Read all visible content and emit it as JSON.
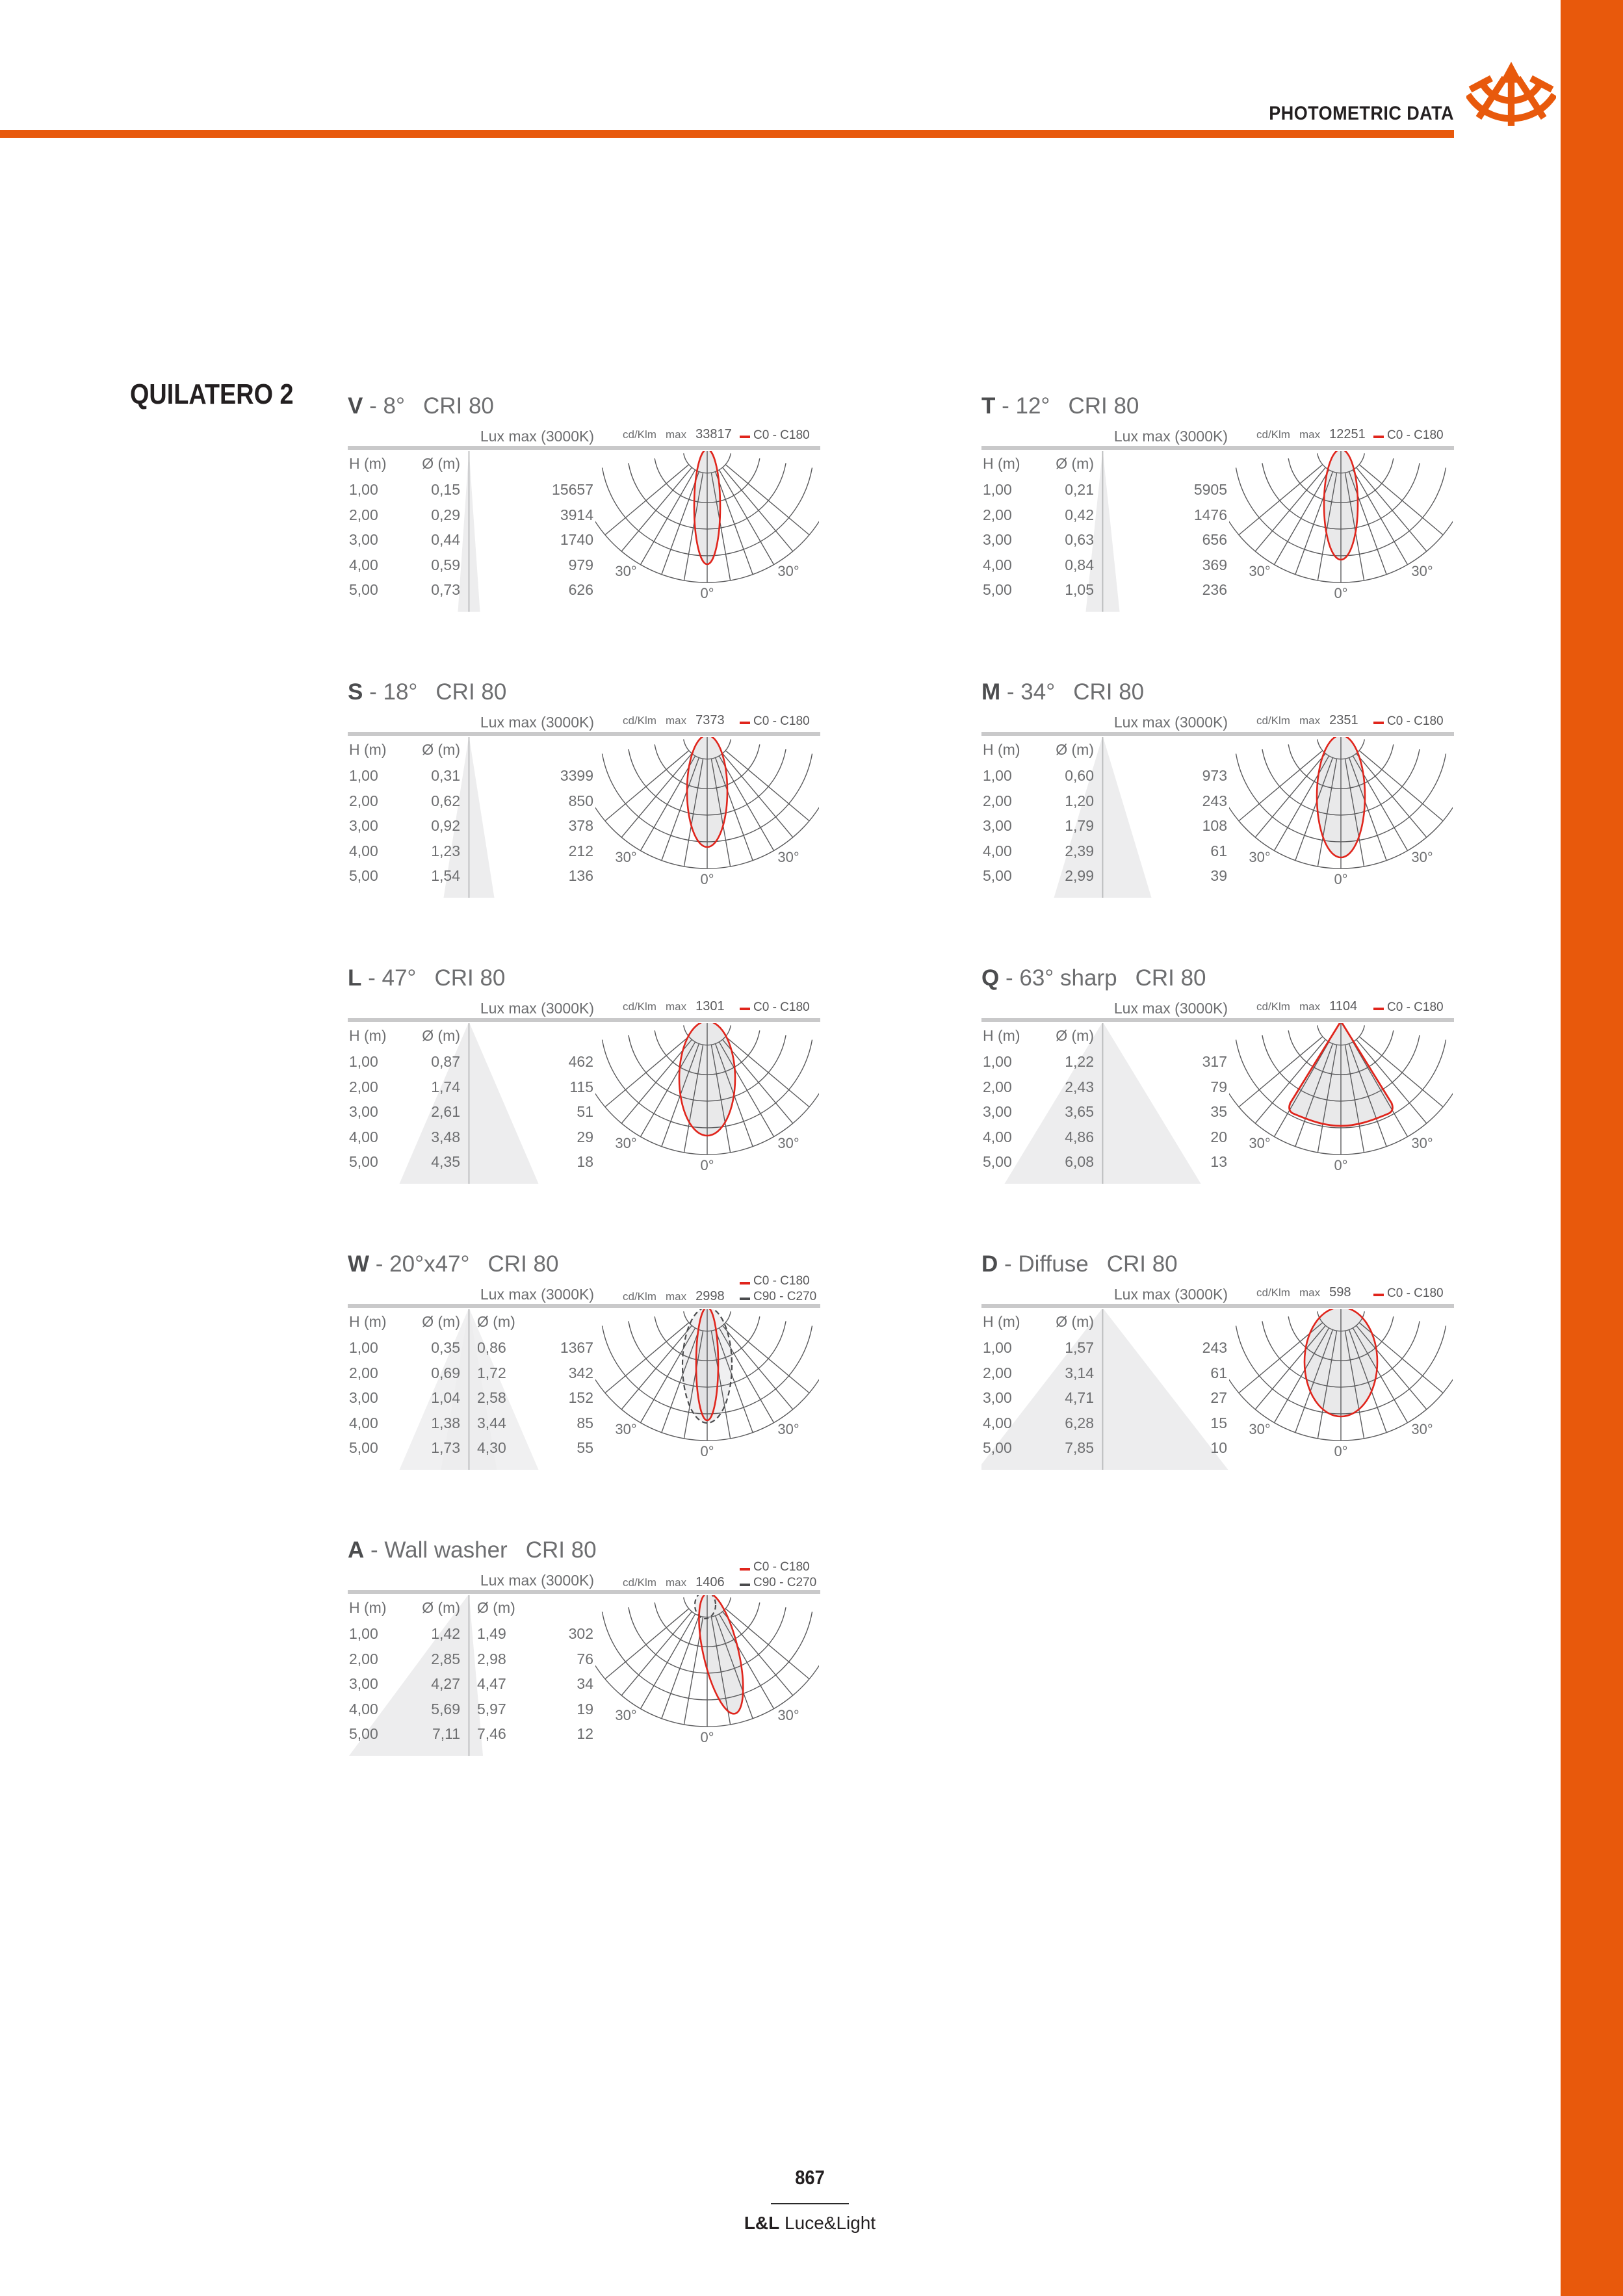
{
  "header": {
    "title": "PHOTOMETRIC DATA"
  },
  "brand": "QUILATERO 2",
  "labels": {
    "lux": "Lux max (3000K)",
    "h": "H (m)",
    "d": "Ø (m)",
    "cd": "cd/Klm",
    "max": "max",
    "c0": "C0 - C180",
    "c90": "C90 - C270",
    "a30": "30°",
    "a0": "0°"
  },
  "sections": [
    {
      "letter": "V",
      "beam": "- 8°",
      "cri": "CRI 80",
      "max": "33817",
      "dual": false,
      "rows": [
        {
          "h": "1,00",
          "d": "0,15",
          "lux": "15657"
        },
        {
          "h": "2,00",
          "d": "0,29",
          "lux": "3914"
        },
        {
          "h": "3,00",
          "d": "0,44",
          "lux": "1740"
        },
        {
          "h": "4,00",
          "d": "0,59",
          "lux": "979"
        },
        {
          "h": "5,00",
          "d": "0,73",
          "lux": "626"
        }
      ]
    },
    {
      "letter": "T",
      "beam": "- 12°",
      "cri": "CRI 80",
      "max": "12251",
      "dual": false,
      "rows": [
        {
          "h": "1,00",
          "d": "0,21",
          "lux": "5905"
        },
        {
          "h": "2,00",
          "d": "0,42",
          "lux": "1476"
        },
        {
          "h": "3,00",
          "d": "0,63",
          "lux": "656"
        },
        {
          "h": "4,00",
          "d": "0,84",
          "lux": "369"
        },
        {
          "h": "5,00",
          "d": "1,05",
          "lux": "236"
        }
      ]
    },
    {
      "letter": "S",
      "beam": "- 18°",
      "cri": "CRI 80",
      "max": "7373",
      "dual": false,
      "rows": [
        {
          "h": "1,00",
          "d": "0,31",
          "lux": "3399"
        },
        {
          "h": "2,00",
          "d": "0,62",
          "lux": "850"
        },
        {
          "h": "3,00",
          "d": "0,92",
          "lux": "378"
        },
        {
          "h": "4,00",
          "d": "1,23",
          "lux": "212"
        },
        {
          "h": "5,00",
          "d": "1,54",
          "lux": "136"
        }
      ]
    },
    {
      "letter": "M",
      "beam": "- 34°",
      "cri": "CRI 80",
      "max": "2351",
      "dual": false,
      "rows": [
        {
          "h": "1,00",
          "d": "0,60",
          "lux": "973"
        },
        {
          "h": "2,00",
          "d": "1,20",
          "lux": "243"
        },
        {
          "h": "3,00",
          "d": "1,79",
          "lux": "108"
        },
        {
          "h": "4,00",
          "d": "2,39",
          "lux": "61"
        },
        {
          "h": "5,00",
          "d": "2,99",
          "lux": "39"
        }
      ]
    },
    {
      "letter": "L",
      "beam": "- 47°",
      "cri": "CRI 80",
      "max": "1301",
      "dual": false,
      "rows": [
        {
          "h": "1,00",
          "d": "0,87",
          "lux": "462"
        },
        {
          "h": "2,00",
          "d": "1,74",
          "lux": "115"
        },
        {
          "h": "3,00",
          "d": "2,61",
          "lux": "51"
        },
        {
          "h": "4,00",
          "d": "3,48",
          "lux": "29"
        },
        {
          "h": "5,00",
          "d": "4,35",
          "lux": "18"
        }
      ]
    },
    {
      "letter": "Q",
      "beam": "- 63° sharp",
      "cri": "CRI 80",
      "max": "1104",
      "dual": false,
      "rows": [
        {
          "h": "1,00",
          "d": "1,22",
          "lux": "317"
        },
        {
          "h": "2,00",
          "d": "2,43",
          "lux": "79"
        },
        {
          "h": "3,00",
          "d": "3,65",
          "lux": "35"
        },
        {
          "h": "4,00",
          "d": "4,86",
          "lux": "20"
        },
        {
          "h": "5,00",
          "d": "6,08",
          "lux": "13"
        }
      ]
    },
    {
      "letter": "W",
      "beam": "- 20°x47°",
      "cri": "CRI 80",
      "max": "2998",
      "dual": true,
      "rows": [
        {
          "h": "1,00",
          "d": "0,35",
          "d2": "0,86",
          "lux": "1367"
        },
        {
          "h": "2,00",
          "d": "0,69",
          "d2": "1,72",
          "lux": "342"
        },
        {
          "h": "3,00",
          "d": "1,04",
          "d2": "2,58",
          "lux": "152"
        },
        {
          "h": "4,00",
          "d": "1,38",
          "d2": "3,44",
          "lux": "85"
        },
        {
          "h": "5,00",
          "d": "1,73",
          "d2": "4,30",
          "lux": "55"
        }
      ]
    },
    {
      "letter": "D",
      "beam": "- Diffuse",
      "cri": "CRI 80",
      "max": "598",
      "dual": false,
      "rows": [
        {
          "h": "1,00",
          "d": "1,57",
          "lux": "243"
        },
        {
          "h": "2,00",
          "d": "3,14",
          "lux": "61"
        },
        {
          "h": "3,00",
          "d": "4,71",
          "lux": "27"
        },
        {
          "h": "4,00",
          "d": "6,28",
          "lux": "15"
        },
        {
          "h": "5,00",
          "d": "7,85",
          "lux": "10"
        }
      ]
    },
    {
      "letter": "A",
      "beam": "- Wall washer",
      "cri": "CRI 80",
      "max": "1406",
      "dual": true,
      "rows": [
        {
          "h": "1,00",
          "d": "1,42",
          "d2": "1,49",
          "lux": "302"
        },
        {
          "h": "2,00",
          "d": "2,85",
          "d2": "2,98",
          "lux": "76"
        },
        {
          "h": "3,00",
          "d": "4,27",
          "d2": "4,47",
          "lux": "34"
        },
        {
          "h": "4,00",
          "d": "5,69",
          "d2": "5,97",
          "lux": "19"
        },
        {
          "h": "5,00",
          "d": "7,11",
          "d2": "7,46",
          "lux": "12"
        }
      ]
    }
  ],
  "footer": {
    "page": "867",
    "brand_bold": "L&L",
    "brand_rest": " Luce&Light"
  },
  "colors": {
    "orange": "#e8590c",
    "red": "#e0251c",
    "grid": "#5a5a5c",
    "dark_dash": "#4a4b4d",
    "lobe_fill": "#e9e9ea",
    "lobe_fill_light": "#f0f0f1",
    "lobe_fill_dark": "#e3e3e5",
    "triangle_fill": "#ededee",
    "divider": "#b9babb"
  }
}
